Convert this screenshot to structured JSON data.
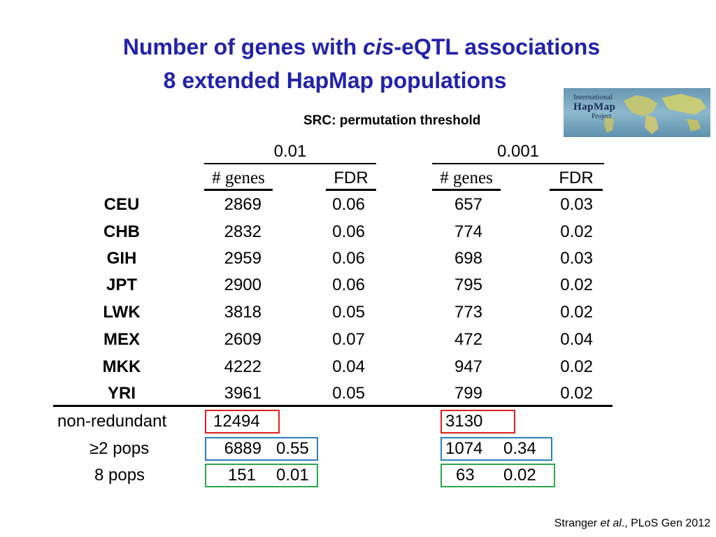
{
  "title": {
    "line1_prefix": "Number of genes with ",
    "line1_italic": "cis",
    "line1_suffix": "-eQTL associations",
    "line2": "8 extended HapMap populations"
  },
  "subtitle": "SRC: permutation threshold",
  "logo": {
    "line1": "International",
    "line2": "HapMap",
    "line3": "Project"
  },
  "table": {
    "thresholds": [
      "0.01",
      "0.001"
    ],
    "col_headers": [
      "# genes",
      "FDR",
      "# genes",
      "FDR"
    ],
    "rows": [
      {
        "pop": "CEU",
        "genes_01": "2869",
        "fdr_01": "0.06",
        "genes_001": "657",
        "fdr_001": "0.03"
      },
      {
        "pop": "CHB",
        "genes_01": "2832",
        "fdr_01": "0.06",
        "genes_001": "774",
        "fdr_001": "0.02"
      },
      {
        "pop": "GIH",
        "genes_01": "2959",
        "fdr_01": "0.06",
        "genes_001": "698",
        "fdr_001": "0.03"
      },
      {
        "pop": "JPT",
        "genes_01": "2900",
        "fdr_01": "0.06",
        "genes_001": "795",
        "fdr_001": "0.02"
      },
      {
        "pop": "LWK",
        "genes_01": "3818",
        "fdr_01": "0.05",
        "genes_001": "773",
        "fdr_001": "0.02"
      },
      {
        "pop": "MEX",
        "genes_01": "2609",
        "fdr_01": "0.07",
        "genes_001": "472",
        "fdr_001": "0.04"
      },
      {
        "pop": "MKK",
        "genes_01": "4222",
        "fdr_01": "0.04",
        "genes_001": "947",
        "fdr_001": "0.02"
      },
      {
        "pop": "YRI",
        "genes_01": "3961",
        "fdr_01": "0.05",
        "genes_001": "799",
        "fdr_001": "0.02"
      }
    ],
    "summary": [
      {
        "label": "non-redundant",
        "genes_01": "12494",
        "fdr_01": "",
        "genes_001": "3130",
        "fdr_001": ""
      },
      {
        "label": "≥2 pops",
        "genes_01": "6889",
        "fdr_01": "0.55",
        "genes_001": "1074",
        "fdr_001": "0.34"
      },
      {
        "label": "8 pops",
        "genes_01": "151",
        "fdr_01": "0.01",
        "genes_001": "63",
        "fdr_001": "0.02"
      }
    ],
    "box_colors": [
      "#e02020",
      "#2a7fc0",
      "#2aa84a"
    ]
  },
  "citation": {
    "prefix": "Stranger ",
    "italic": "et al",
    "suffix": "., PLoS Gen 2012"
  }
}
